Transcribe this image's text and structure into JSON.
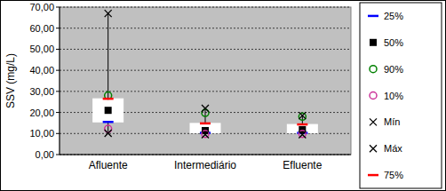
{
  "chart_data": {
    "type": "box",
    "y_label": "SSV (mg/L)",
    "categories": [
      "Afluente",
      "Intermediário",
      "Efluente"
    ],
    "series": [
      {
        "name": "25%",
        "color": "#0000ff",
        "marker": "dash",
        "values": [
          15.5,
          10.3,
          10.3
        ]
      },
      {
        "name": "50%",
        "color": "#000000",
        "marker": "square",
        "values": [
          21.0,
          11.4,
          11.8
        ]
      },
      {
        "name": "90%",
        "color": "#008000",
        "marker": "circle",
        "values": [
          28.0,
          19.8,
          18.0
        ]
      },
      {
        "name": "10%",
        "color": "#cc3399",
        "marker": "circle",
        "values": [
          12.2,
          9.8,
          9.8
        ]
      },
      {
        "name": "Mín",
        "color": "#000000",
        "marker": "x",
        "values": [
          10.1,
          9.5,
          9.5
        ]
      },
      {
        "name": "Máx",
        "color": "#000000",
        "marker": "x",
        "values": [
          67.0,
          21.9,
          18.5
        ]
      },
      {
        "name": "75%",
        "color": "#ff0000",
        "marker": "dash",
        "values": [
          26.5,
          14.8,
          14.3
        ]
      }
    ],
    "ylim": [
      0,
      70
    ],
    "yticks": [
      {
        "value": 0,
        "label": "0,00"
      },
      {
        "value": 10,
        "label": "10,00"
      },
      {
        "value": 20,
        "label": "20,00"
      },
      {
        "value": 30,
        "label": "30,00"
      },
      {
        "value": 40,
        "label": "40,00"
      },
      {
        "value": 50,
        "label": "50,00"
      },
      {
        "value": 60,
        "label": "60,00"
      },
      {
        "value": 70,
        "label": "70,00"
      }
    ],
    "grid": true,
    "legend": "right"
  }
}
